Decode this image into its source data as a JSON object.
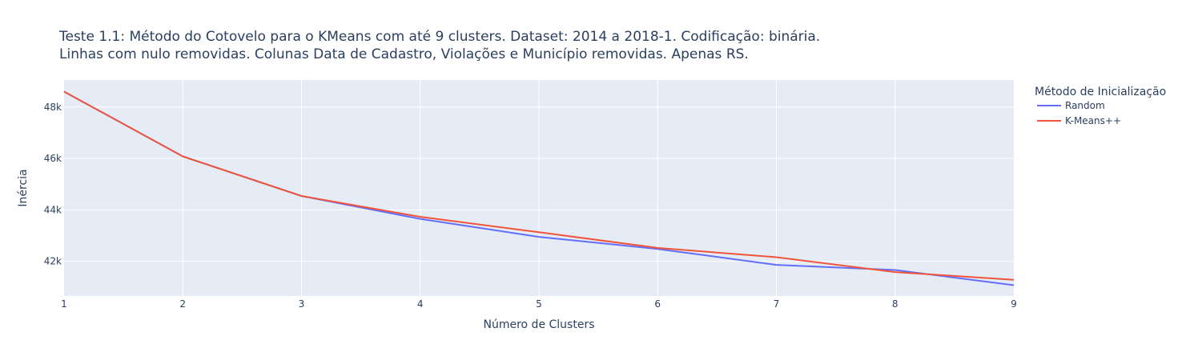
{
  "chart_data": {
    "type": "line",
    "title_lines": [
      "Teste 1.1: Método do Cotovelo para o KMeans com até 9 clusters. Dataset: 2014 a 2018-1. Codificação: binária.",
      "Linhas com nulo removidas. Colunas Data de Cadastro, Violações e Município removidas. Apenas RS."
    ],
    "xlabel": "Número de Clusters",
    "ylabel": "Inércia",
    "x": [
      1,
      2,
      3,
      4,
      5,
      6,
      7,
      8,
      9
    ],
    "xticks": [
      "1",
      "2",
      "3",
      "4",
      "5",
      "6",
      "7",
      "8",
      "9"
    ],
    "xlim": [
      1,
      9
    ],
    "ylim": [
      40650,
      49050
    ],
    "yticks": [
      {
        "value": 42000,
        "label": "42k"
      },
      {
        "value": 44000,
        "label": "44k"
      },
      {
        "value": 46000,
        "label": "46k"
      },
      {
        "value": 48000,
        "label": "48k"
      }
    ],
    "grid": true,
    "legend": {
      "title": "Método de Inicialização",
      "position": "top-right"
    },
    "series": [
      {
        "name": "Random",
        "color": "#636efa",
        "values": [
          48600,
          46080,
          44540,
          43650,
          42950,
          42480,
          41860,
          41660,
          41070
        ]
      },
      {
        "name": "K-Means++",
        "color": "#ef553b",
        "values": [
          48600,
          46080,
          44540,
          43730,
          43130,
          42520,
          42160,
          41580,
          41280
        ]
      }
    ]
  },
  "colors": {
    "plot_background": "#e5ecf6",
    "gridline": "#ffffff",
    "text": "#2a3f5f"
  }
}
